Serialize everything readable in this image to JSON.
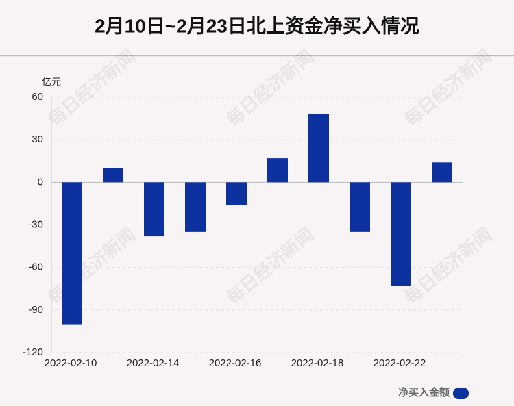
{
  "chart_data": {
    "type": "bar",
    "title": "2月10日~2月23日北上资金净买入情况",
    "y_unit": "亿元",
    "categories": [
      "2022-02-10",
      null,
      "2022-02-14",
      null,
      "2022-02-16",
      null,
      "2022-02-18",
      null,
      "2022-02-22",
      null
    ],
    "series": [
      {
        "name": "净买入金额",
        "color": "#0d32a0",
        "values": [
          -100,
          10,
          -38,
          -35,
          -16,
          17,
          48,
          -35,
          -73,
          14
        ]
      }
    ],
    "ylim": [
      -120,
      60
    ],
    "yticks": [
      60,
      30,
      0,
      -30,
      -60,
      -90,
      -120
    ],
    "grid": true,
    "legend": "bottom-right",
    "watermark": "每日经济新闻"
  }
}
